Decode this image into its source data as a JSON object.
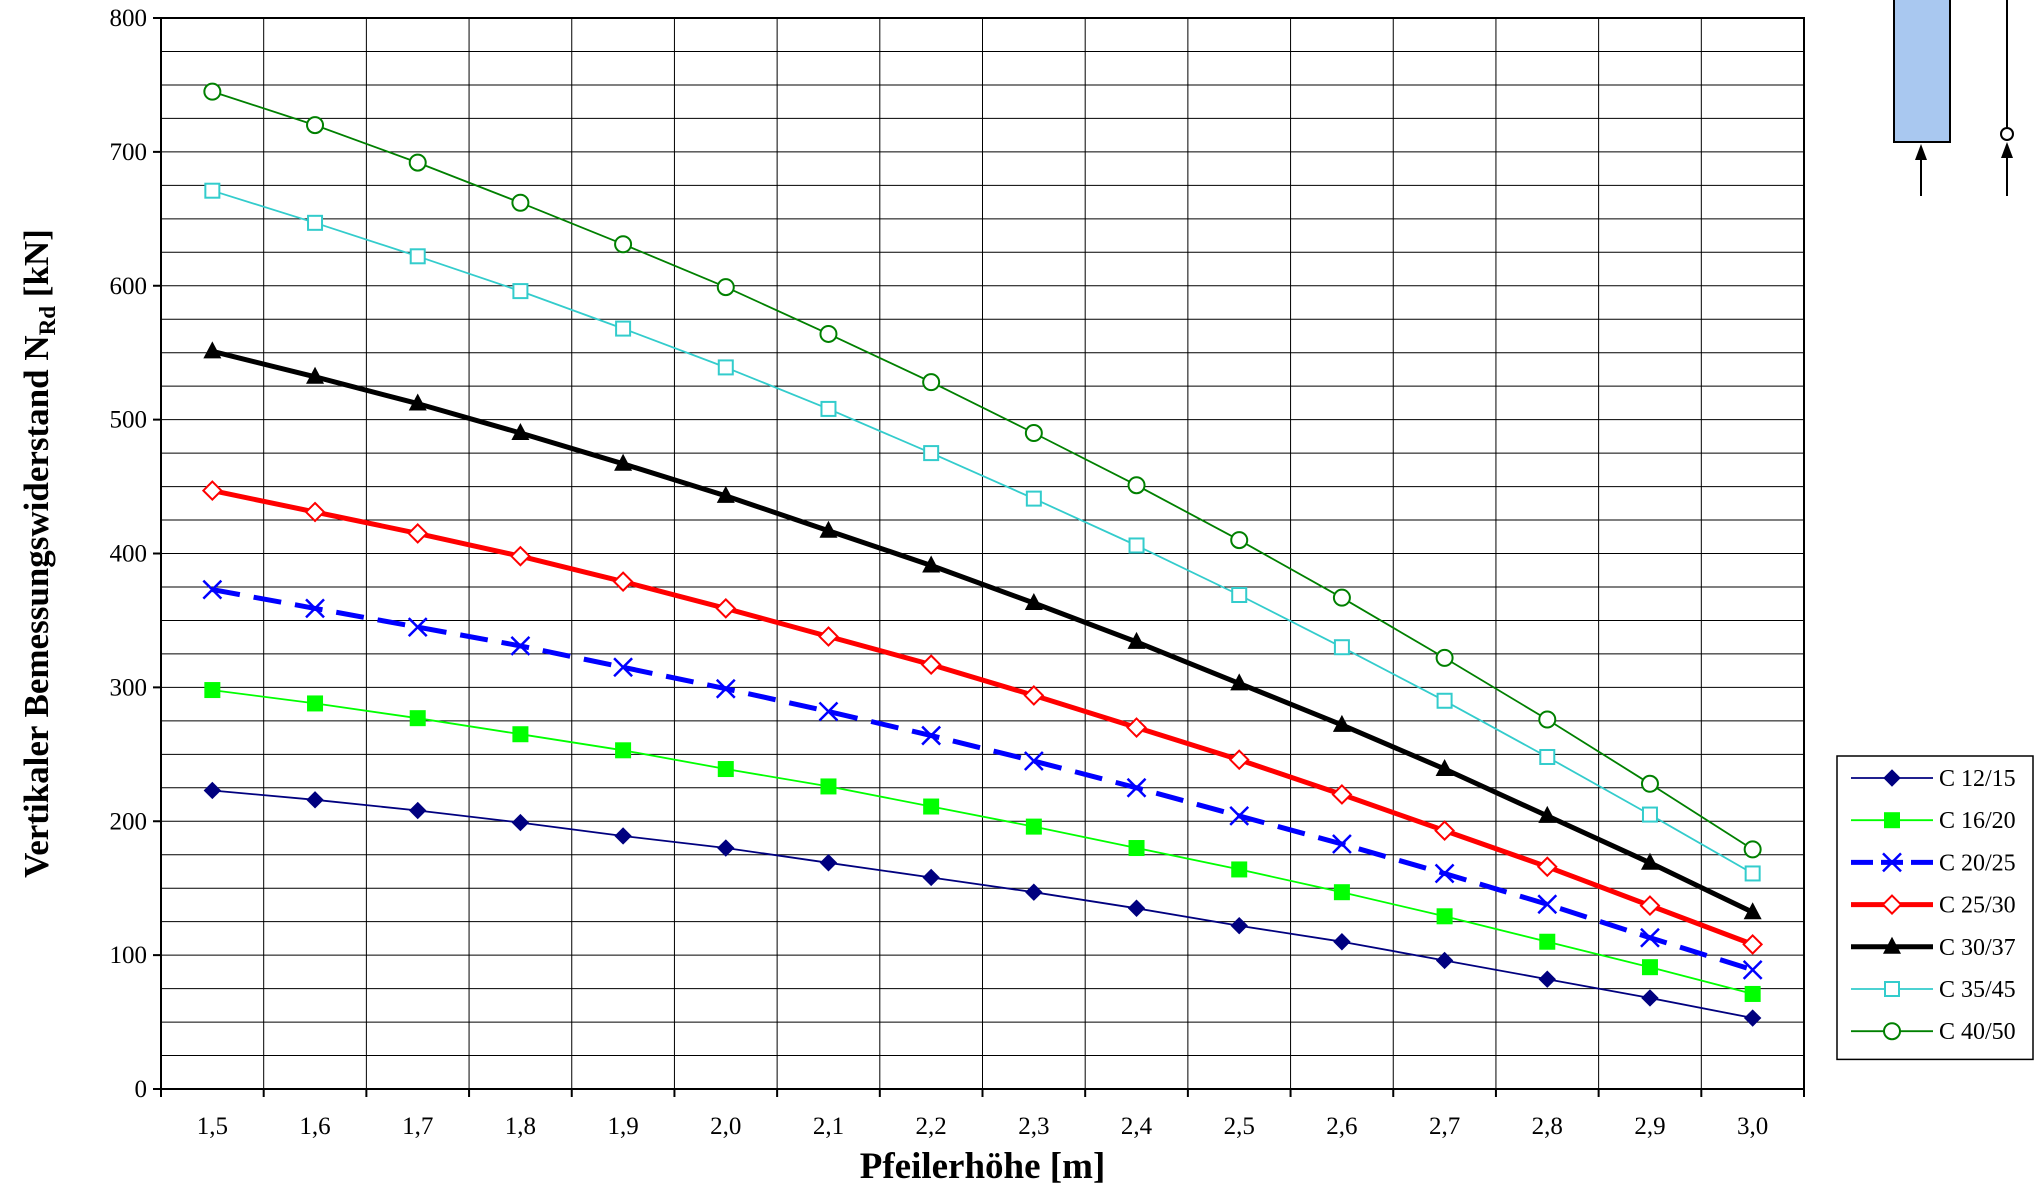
{
  "chart_data": {
    "type": "line",
    "xlabel": "Pfeilerhöhe [m]",
    "ylabel_main": "Vertikaler Bemessungswiderstand N",
    "ylabel_sub": "Rd",
    "ylabel_unit": " [kN]",
    "x": [
      "1,5",
      "1,6",
      "1,7",
      "1,8",
      "1,9",
      "2,0",
      "2,1",
      "2,2",
      "2,3",
      "2,4",
      "2,5",
      "2,6",
      "2,7",
      "2,8",
      "2,9",
      "3,0"
    ],
    "ylim": [
      0,
      800
    ],
    "yticks": [
      "0",
      "100",
      "200",
      "300",
      "400",
      "500",
      "600",
      "700",
      "800"
    ],
    "grid": true,
    "legend_position": "bottom-right",
    "series": [
      {
        "name": "C 12/15",
        "color": "#00007f",
        "marker": "diamond",
        "line": "solid-thin",
        "values": [
          223,
          216,
          208,
          199,
          189,
          180,
          169,
          158,
          147,
          135,
          122,
          110,
          96,
          82,
          68,
          53
        ]
      },
      {
        "name": "C 16/20",
        "color": "#00ff00",
        "marker": "square-filled",
        "line": "solid-thin",
        "values": [
          298,
          288,
          277,
          265,
          253,
          239,
          226,
          211,
          196,
          180,
          164,
          147,
          129,
          110,
          91,
          71
        ]
      },
      {
        "name": "C 20/25",
        "color": "#0000ff",
        "marker": "cross",
        "line": "dashed-thick",
        "values": [
          373,
          359,
          345,
          331,
          315,
          299,
          282,
          264,
          245,
          225,
          204,
          183,
          161,
          138,
          113,
          89
        ]
      },
      {
        "name": "C 25/30",
        "color": "#ff0000",
        "marker": "diamond-open",
        "line": "solid-thick",
        "values": [
          447,
          431,
          415,
          398,
          379,
          359,
          338,
          317,
          294,
          270,
          246,
          220,
          193,
          166,
          137,
          108
        ]
      },
      {
        "name": "C 30/37",
        "color": "#000000",
        "marker": "triangle-filled",
        "line": "solid-thick",
        "values": [
          551,
          532,
          512,
          490,
          467,
          443,
          417,
          391,
          363,
          334,
          303,
          272,
          239,
          204,
          169,
          132
        ]
      },
      {
        "name": "C 35/45",
        "color": "#33cccc",
        "marker": "square-open",
        "line": "solid-thin",
        "values": [
          671,
          647,
          622,
          596,
          568,
          539,
          508,
          475,
          441,
          406,
          369,
          330,
          290,
          248,
          205,
          161
        ]
      },
      {
        "name": "C 40/50",
        "color": "#008000",
        "marker": "circle-open",
        "line": "solid-thin",
        "values": [
          745,
          720,
          692,
          662,
          631,
          599,
          564,
          528,
          490,
          451,
          410,
          367,
          322,
          276,
          228,
          179
        ]
      }
    ]
  },
  "sketch": {
    "column_color": "#a9c8f0"
  }
}
